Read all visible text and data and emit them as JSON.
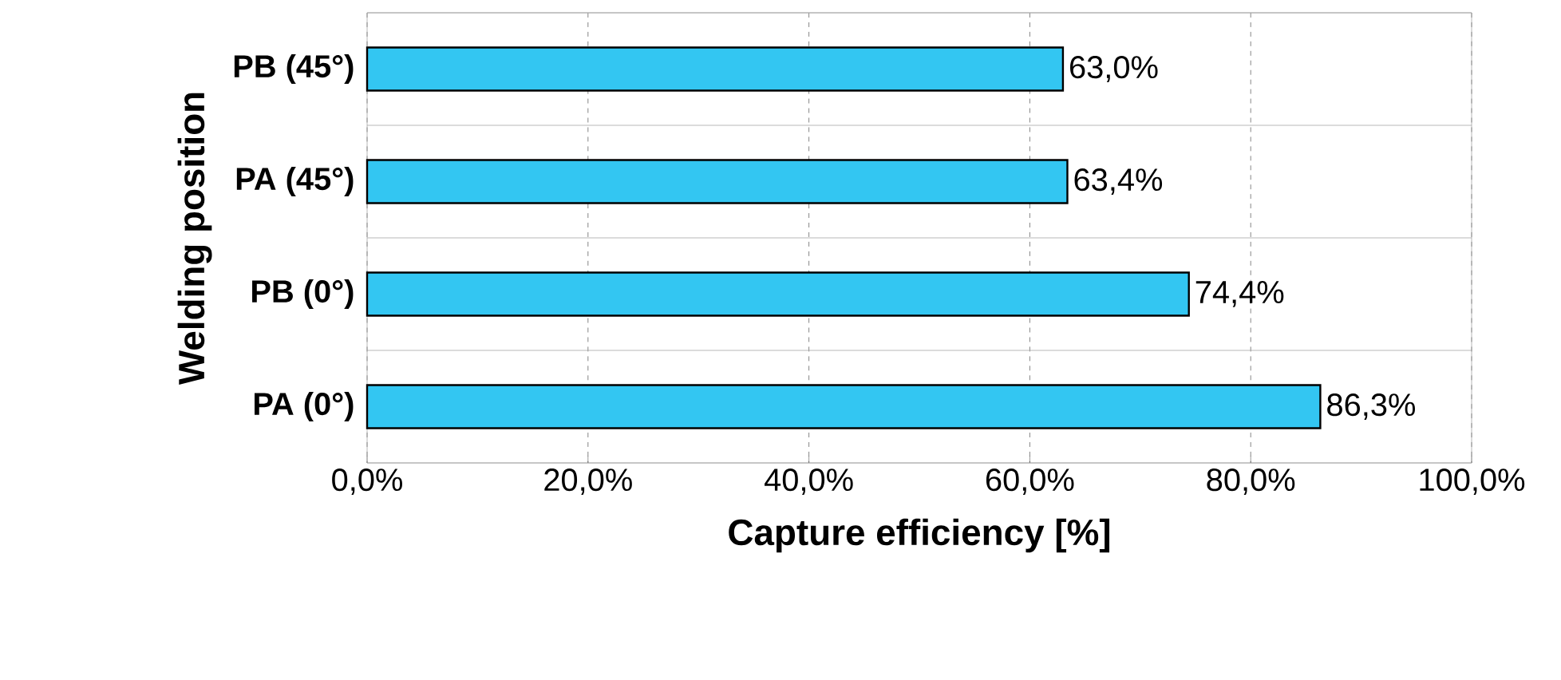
{
  "chart_data": {
    "type": "bar",
    "orientation": "horizontal",
    "xlabel": "Capture efficiency [%]",
    "ylabel": "Welding position",
    "categories": [
      "PB (45°)",
      "PA (45°)",
      "PB (0°)",
      "PA (0°)"
    ],
    "values": [
      63.0,
      63.4,
      74.4,
      86.3
    ],
    "value_labels": [
      "63,0%",
      "63,4%",
      "74,4%",
      "86,3%"
    ],
    "color": "#33c6f2",
    "xlim": [
      0,
      100
    ],
    "xticks": [
      {
        "value": 0,
        "label": "0,0%"
      },
      {
        "value": 20,
        "label": "20,0%"
      },
      {
        "value": 40,
        "label": "40,0%"
      },
      {
        "value": 60,
        "label": "60,0%"
      },
      {
        "value": 80,
        "label": "80,0%"
      },
      {
        "value": 100,
        "label": "100,0%"
      }
    ],
    "grid": "x"
  }
}
